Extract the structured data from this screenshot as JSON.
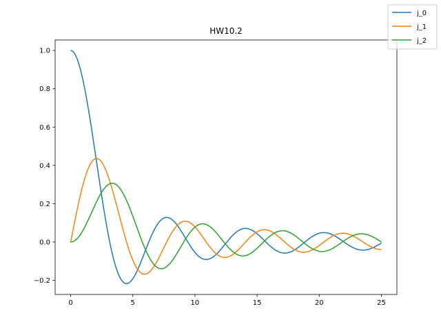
{
  "chart_data": {
    "type": "line",
    "title": "HW10.2",
    "xlabel": "",
    "ylabel": "",
    "xlim": [
      -1.25,
      26.25
    ],
    "ylim": [
      -0.2738,
      1.0546
    ],
    "xticks": [
      0,
      5,
      10,
      15,
      20,
      25
    ],
    "xtick_labels": [
      "0",
      "5",
      "10",
      "15",
      "20",
      "25"
    ],
    "yticks": [
      -0.2,
      0.0,
      0.2,
      0.4,
      0.6,
      0.8,
      1.0
    ],
    "ytick_labels": [
      "−0.2",
      "0.0",
      "0.2",
      "0.4",
      "0.6",
      "0.8",
      "1.0"
    ],
    "grid": false,
    "legend_position": "top-right (outside axes)",
    "x_range": [
      0,
      25
    ],
    "series": [
      {
        "name": "j_0",
        "color": "#1f77b4",
        "function": "spherical_bessel_j0"
      },
      {
        "name": "j_1",
        "color": "#ff7f0e",
        "function": "spherical_bessel_j1"
      },
      {
        "name": "j_2",
        "color": "#2ca02c",
        "function": "spherical_bessel_j2"
      }
    ]
  }
}
